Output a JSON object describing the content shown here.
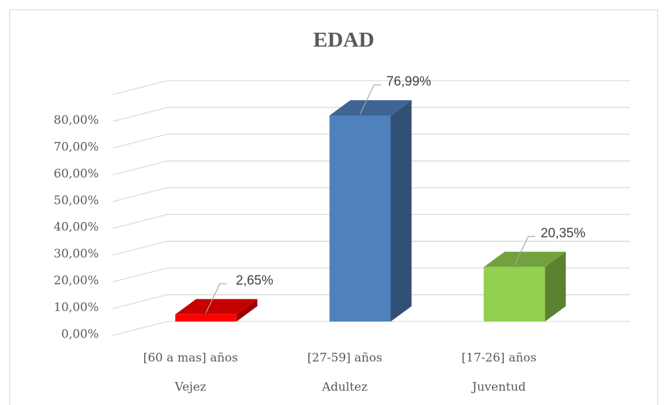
{
  "chart_data": {
    "type": "bar3d",
    "title": "EDAD",
    "categories": [
      "[60 a mas] años",
      "[27-59] años",
      "[17-26] años"
    ],
    "category_groups": [
      "Vejez",
      "Adultez",
      "Juventud"
    ],
    "values": [
      2.65,
      76.99,
      20.35
    ],
    "value_labels": [
      "2,65%",
      "76,99%",
      "20,35%"
    ],
    "colors": [
      "#ff0000",
      "#4f81bd",
      "#92d050"
    ],
    "ylim": [
      0,
      90
    ],
    "yticks": [
      {
        "value": 0,
        "label": "0,00%"
      },
      {
        "value": 10,
        "label": "10,00%"
      },
      {
        "value": 20,
        "label": "20,00%"
      },
      {
        "value": 30,
        "label": "30,00%"
      },
      {
        "value": 40,
        "label": "40,00%"
      },
      {
        "value": 50,
        "label": "50,00%"
      },
      {
        "value": 60,
        "label": "60,00%"
      },
      {
        "value": 70,
        "label": "70,00%"
      },
      {
        "value": 80,
        "label": "80,00%"
      }
    ],
    "grid": true
  }
}
